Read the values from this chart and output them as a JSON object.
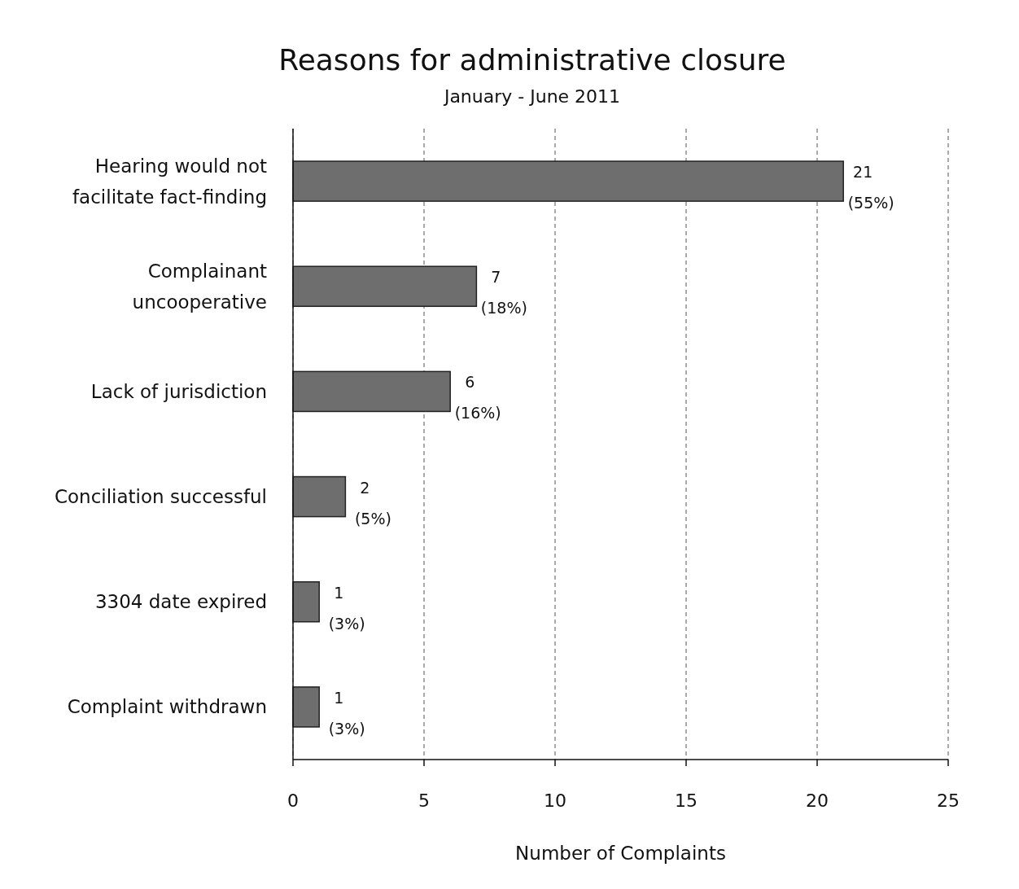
{
  "chart_data": {
    "type": "bar",
    "orientation": "horizontal",
    "title": "Reasons for administrative closure",
    "subtitle": "January - June 2011",
    "xlabel": "Number of Complaints",
    "categories": [
      "Hearing would not facilitate fact-finding",
      "Complainant uncooperative",
      "Lack of jurisdiction",
      "Conciliation successful",
      "3304 date expired",
      "Complaint withdrawn"
    ],
    "values": [
      21,
      7,
      6,
      2,
      1,
      1
    ],
    "value_labels": [
      "21\n(55%)",
      "7\n(18%)",
      "6\n(16%)",
      "2\n(5%)",
      "1\n(3%)",
      "1\n(3%)"
    ],
    "color": "#6e6e6e",
    "xlim": [
      0,
      25
    ],
    "xticks": [
      0,
      5,
      10,
      15,
      20,
      25
    ],
    "grid": "x"
  }
}
